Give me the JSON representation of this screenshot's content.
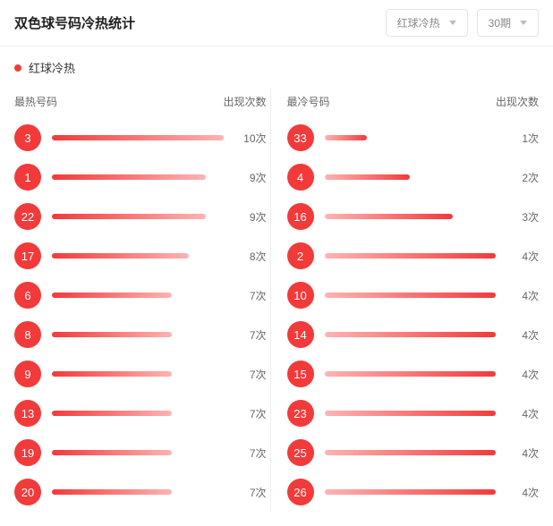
{
  "header": {
    "title": "双色球号码冷热统计",
    "selector_type": {
      "label": "红球冷热"
    },
    "selector_period": {
      "label": "30期"
    }
  },
  "subheader": {
    "title": "红球冷热"
  },
  "style": {
    "ball_color": "#f23a3a",
    "count_suffix": "次",
    "hot_max": 10,
    "cold_max": 4,
    "hot_gradient": {
      "from": "#f23a3a",
      "to": "#ffb3b3"
    },
    "cold_gradient": {
      "from": "#ffb3b3",
      "to": "#f23a3a"
    }
  },
  "panels": {
    "hot": {
      "head_left": "最热号码",
      "head_right": "出现次数",
      "rows": [
        {
          "num": "3",
          "count": 10
        },
        {
          "num": "1",
          "count": 9
        },
        {
          "num": "22",
          "count": 9
        },
        {
          "num": "17",
          "count": 8
        },
        {
          "num": "6",
          "count": 7
        },
        {
          "num": "8",
          "count": 7
        },
        {
          "num": "9",
          "count": 7
        },
        {
          "num": "13",
          "count": 7
        },
        {
          "num": "19",
          "count": 7
        },
        {
          "num": "20",
          "count": 7
        }
      ]
    },
    "cold": {
      "head_left": "最冷号码",
      "head_right": "出现次数",
      "rows": [
        {
          "num": "33",
          "count": 1
        },
        {
          "num": "4",
          "count": 2
        },
        {
          "num": "16",
          "count": 3
        },
        {
          "num": "2",
          "count": 4
        },
        {
          "num": "10",
          "count": 4
        },
        {
          "num": "14",
          "count": 4
        },
        {
          "num": "15",
          "count": 4
        },
        {
          "num": "23",
          "count": 4
        },
        {
          "num": "25",
          "count": 4
        },
        {
          "num": "26",
          "count": 4
        }
      ]
    }
  }
}
